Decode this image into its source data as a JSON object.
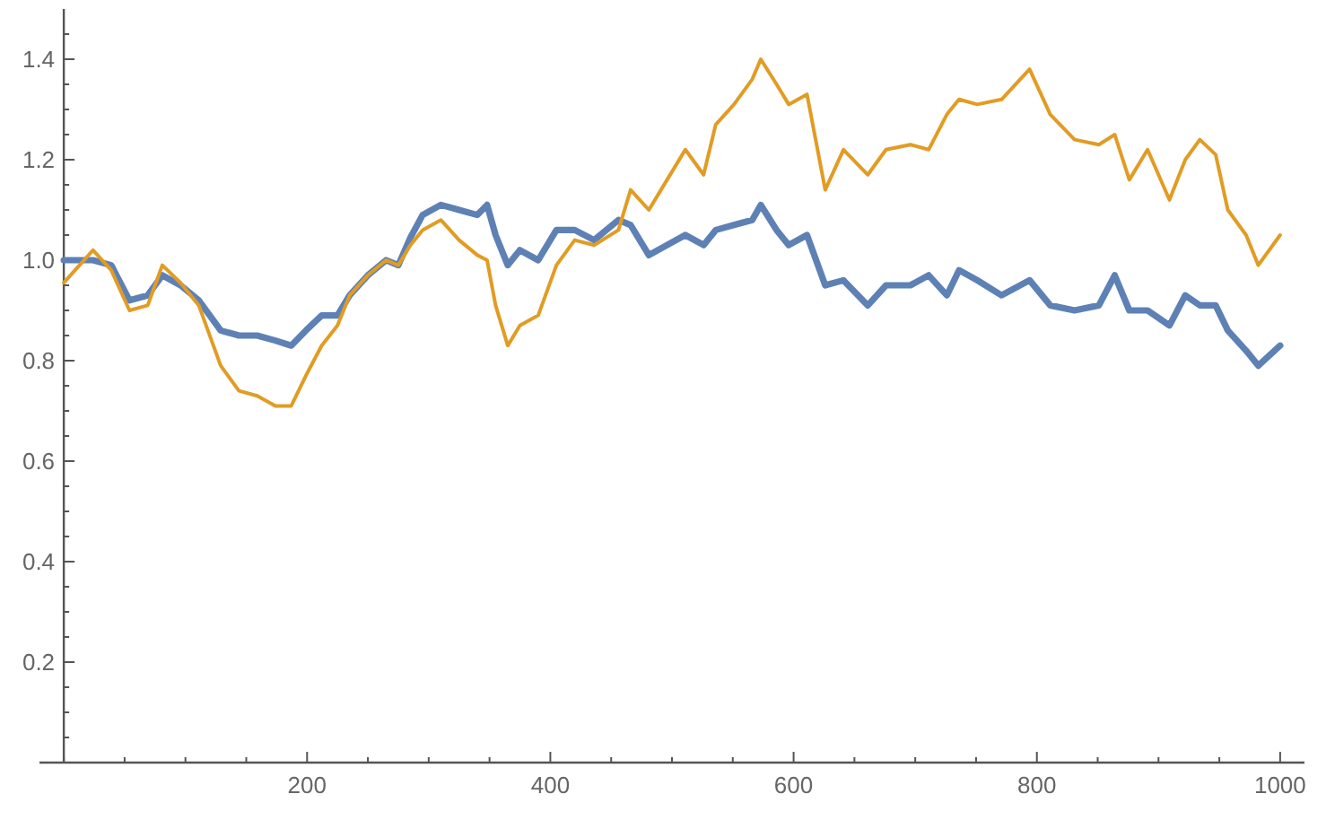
{
  "chart_data": {
    "type": "line",
    "x": [
      0,
      24,
      39,
      54,
      69,
      81,
      96,
      111,
      129,
      144,
      159,
      174,
      187,
      199,
      212,
      225,
      235,
      250,
      265,
      275,
      285,
      295,
      310,
      325,
      340,
      348,
      355,
      365,
      375,
      390,
      405,
      420,
      436,
      456,
      466,
      481,
      496,
      511,
      526,
      536,
      551,
      566,
      573,
      586,
      596,
      611,
      626,
      641,
      661,
      676,
      696,
      711,
      726,
      736,
      751,
      771,
      794,
      811,
      831,
      851,
      864,
      876,
      891,
      909,
      922,
      934,
      947,
      957,
      972,
      982,
      1000
    ],
    "series": [
      {
        "color": "#5e81b5",
        "values": [
          1.0,
          1.0,
          0.99,
          0.92,
          0.93,
          0.97,
          0.95,
          0.92,
          0.86,
          0.85,
          0.85,
          0.84,
          0.83,
          0.86,
          0.89,
          0.89,
          0.93,
          0.97,
          1.0,
          0.99,
          1.045,
          1.09,
          1.11,
          1.1,
          1.09,
          1.11,
          1.05,
          0.99,
          1.02,
          1.0,
          1.06,
          1.06,
          1.04,
          1.08,
          1.07,
          1.01,
          1.03,
          1.05,
          1.03,
          1.06,
          1.07,
          1.08,
          1.11,
          1.06,
          1.03,
          1.05,
          0.95,
          0.96,
          0.91,
          0.95,
          0.95,
          0.97,
          0.93,
          0.98,
          0.96,
          0.93,
          0.96,
          0.91,
          0.9,
          0.91,
          0.97,
          0.9,
          0.9,
          0.87,
          0.93,
          0.91,
          0.91,
          0.86,
          0.82,
          0.79,
          0.83
        ]
      },
      {
        "color": "#e19c24",
        "values": [
          0.955,
          1.02,
          0.98,
          0.9,
          0.91,
          0.99,
          0.955,
          0.91,
          0.79,
          0.74,
          0.73,
          0.71,
          0.71,
          0.77,
          0.83,
          0.87,
          0.93,
          0.97,
          1.0,
          0.99,
          1.03,
          1.06,
          1.08,
          1.04,
          1.01,
          1.0,
          0.91,
          0.83,
          0.87,
          0.89,
          0.99,
          1.04,
          1.03,
          1.06,
          1.14,
          1.1,
          1.16,
          1.22,
          1.17,
          1.27,
          1.31,
          1.36,
          1.4,
          1.35,
          1.31,
          1.33,
          1.14,
          1.22,
          1.17,
          1.22,
          1.23,
          1.22,
          1.29,
          1.32,
          1.31,
          1.32,
          1.38,
          1.29,
          1.24,
          1.23,
          1.25,
          1.16,
          1.22,
          1.12,
          1.2,
          1.24,
          1.21,
          1.1,
          1.05,
          0.99,
          1.05
        ]
      }
    ],
    "xlim": [
      -20,
      1020
    ],
    "ylim": [
      0,
      1.5
    ],
    "xticks": [
      {
        "value": 0,
        "label": null
      },
      {
        "value": 50,
        "label": null
      },
      {
        "value": 100,
        "label": null
      },
      {
        "value": 150,
        "label": null
      },
      200,
      {
        "value": 250,
        "label": null
      },
      {
        "value": 300,
        "label": null
      },
      {
        "value": 350,
        "label": null
      },
      400,
      {
        "value": 450,
        "label": null
      },
      {
        "value": 500,
        "label": null
      },
      {
        "value": 550,
        "label": null
      },
      600,
      {
        "value": 650,
        "label": null
      },
      {
        "value": 700,
        "label": null
      },
      {
        "value": 750,
        "label": null
      },
      800,
      {
        "value": 850,
        "label": null
      },
      {
        "value": 900,
        "label": null
      },
      {
        "value": 950,
        "label": null
      },
      1000
    ],
    "yticks": [
      {
        "value": 0.05,
        "label": null
      },
      {
        "value": 0.1,
        "label": null
      },
      {
        "value": 0.15,
        "label": null
      },
      {
        "value": 0.2,
        "label": "0.2"
      },
      {
        "value": 0.25,
        "label": null
      },
      {
        "value": 0.3,
        "label": null
      },
      {
        "value": 0.35,
        "label": null
      },
      {
        "value": 0.4,
        "label": "0.4"
      },
      {
        "value": 0.45,
        "label": null
      },
      {
        "value": 0.5,
        "label": null
      },
      {
        "value": 0.55,
        "label": null
      },
      {
        "value": 0.6,
        "label": "0.6"
      },
      {
        "value": 0.65,
        "label": null
      },
      {
        "value": 0.7,
        "label": null
      },
      {
        "value": 0.75,
        "label": null
      },
      {
        "value": 0.8,
        "label": "0.8"
      },
      {
        "value": 0.85,
        "label": null
      },
      {
        "value": 0.9,
        "label": null
      },
      {
        "value": 0.95,
        "label": null
      },
      {
        "value": 1.0,
        "label": "1.0"
      },
      {
        "value": 1.05,
        "label": null
      },
      {
        "value": 1.1,
        "label": null
      },
      {
        "value": 1.15,
        "label": null
      },
      {
        "value": 1.2,
        "label": "1.2"
      },
      {
        "value": 1.25,
        "label": null
      },
      {
        "value": 1.3,
        "label": null
      },
      {
        "value": 1.35,
        "label": null
      },
      {
        "value": 1.4,
        "label": "1.4"
      },
      {
        "value": 1.45,
        "label": null
      }
    ],
    "grid": false
  }
}
